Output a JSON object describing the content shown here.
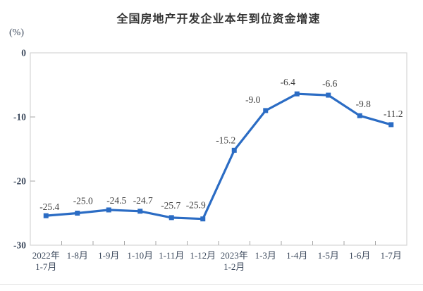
{
  "page": {
    "background": "#ffffff"
  },
  "chart_data": {
    "type": "line",
    "title": "全国房地产开发企业本年到位资金增速",
    "unit_label": "(%)",
    "categories": [
      "2022年\n1-7月",
      "1-8月",
      "1-9月",
      "1-10月",
      "1-11月",
      "1-12月",
      "2023年\n1-2月",
      "1-3月",
      "1-4月",
      "1-5月",
      "1-6月",
      "1-7月"
    ],
    "values": [
      -25.4,
      -25.0,
      -24.5,
      -24.7,
      -25.7,
      -25.9,
      -15.2,
      -9.0,
      -6.4,
      -6.6,
      -9.8,
      -11.2
    ],
    "data_labels": [
      "-25.4",
      "-25.0",
      "-24.5",
      "-24.7",
      "-25.7",
      "-25.9",
      "-15.2",
      "-9.0",
      "-6.4",
      "-6.6",
      "-9.8",
      "-11.2"
    ],
    "ylim": [
      -30,
      0
    ],
    "yticks": [
      0,
      -10,
      -20,
      -30
    ],
    "grid": false,
    "legend": "none",
    "marker": "square",
    "colors": {
      "line": "#2b6cc4",
      "marker": "#2b6cc4",
      "data_label": "#3f3f3f",
      "axis_text": "#3d4a5d",
      "title": "#333333",
      "plot_border": "#d6d6d6",
      "tick": "#a6a6a6",
      "divider": "#e6e6e6"
    }
  }
}
